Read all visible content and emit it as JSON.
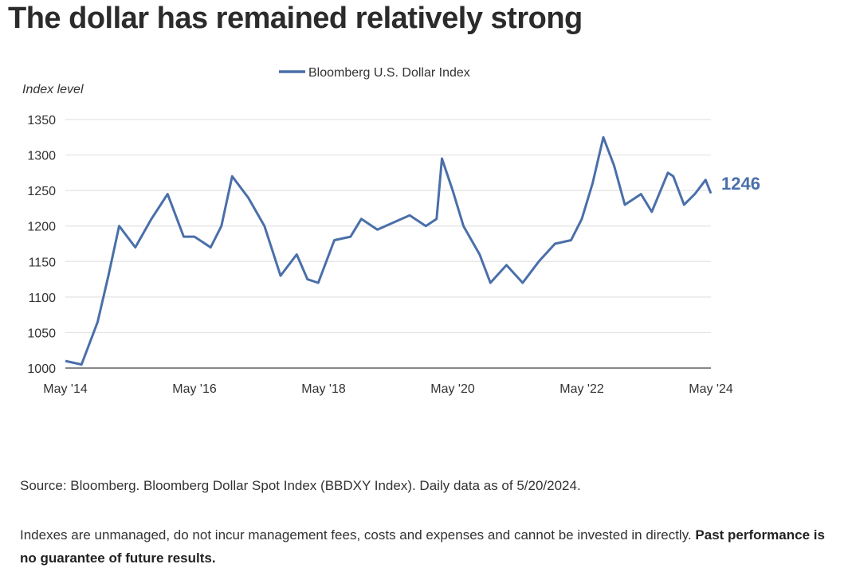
{
  "title": "The dollar has remained relatively strong",
  "source_note": "Source: Bloomberg. Bloomberg Dollar Spot Index (BBDXY Index). Daily data as of 5/20/2024.",
  "disclaimer": "Indexes  are unmanaged, do not incur management fees, costs and expenses and cannot be invested in directly.",
  "disclaimer_bold": "Past performance is no guarantee of future results.",
  "colors": {
    "series": "#4a6fa9",
    "grid": "#e3e3e3",
    "axis": "#888888",
    "text": "#333333"
  },
  "chart_data": {
    "type": "line",
    "title": "",
    "ylabel": "Index level",
    "xlabel": "",
    "legend_position": "top-center",
    "grid": true,
    "ylim": [
      1000,
      1350
    ],
    "y_ticks": [
      1000,
      1050,
      1100,
      1150,
      1200,
      1250,
      1300,
      1350
    ],
    "x_ticks": [
      "May '14",
      "May '16",
      "May '18",
      "May '20",
      "May '22",
      "May '24"
    ],
    "end_label": "1246",
    "series": [
      {
        "name": "Bloomberg U.S. Dollar Index",
        "x": [
          "2014-05",
          "2014-08",
          "2014-11",
          "2015-01",
          "2015-03",
          "2015-06",
          "2015-09",
          "2015-12",
          "2016-03",
          "2016-05",
          "2016-08",
          "2016-10",
          "2016-12",
          "2017-03",
          "2017-06",
          "2017-09",
          "2017-12",
          "2018-02",
          "2018-04",
          "2018-07",
          "2018-10",
          "2018-12",
          "2019-03",
          "2019-06",
          "2019-09",
          "2019-12",
          "2020-02",
          "2020-03",
          "2020-05",
          "2020-07",
          "2020-10",
          "2020-12",
          "2021-03",
          "2021-06",
          "2021-09",
          "2021-12",
          "2022-03",
          "2022-05",
          "2022-07",
          "2022-09",
          "2022-11",
          "2023-01",
          "2023-04",
          "2023-06",
          "2023-09",
          "2023-10",
          "2023-12",
          "2024-02",
          "2024-04",
          "2024-05"
        ],
        "y": [
          1010,
          1005,
          1065,
          1130,
          1200,
          1170,
          1210,
          1245,
          1185,
          1185,
          1170,
          1200,
          1270,
          1240,
          1200,
          1130,
          1160,
          1125,
          1120,
          1180,
          1185,
          1210,
          1195,
          1205,
          1215,
          1200,
          1210,
          1295,
          1250,
          1200,
          1160,
          1120,
          1145,
          1120,
          1150,
          1175,
          1180,
          1210,
          1260,
          1325,
          1285,
          1230,
          1245,
          1220,
          1275,
          1270,
          1230,
          1245,
          1265,
          1246
        ]
      }
    ]
  }
}
